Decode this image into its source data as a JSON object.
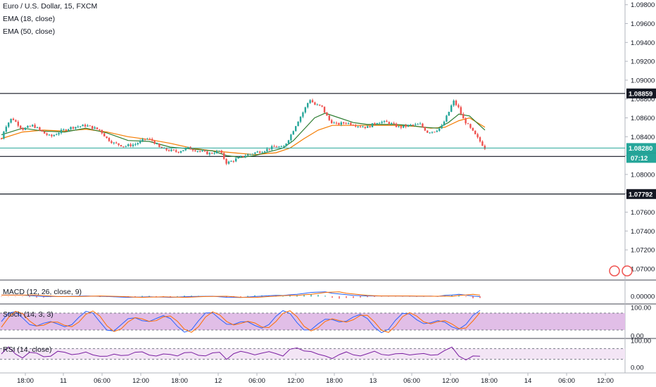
{
  "legend": {
    "symbol": "Euro / U.S. Dollar, 15, FXCM",
    "ema18": "EMA (18, close)",
    "ema50": "EMA (50, close)",
    "macd": "MACD (12, 26, close, 9)",
    "stoch": "Stoch (14, 3, 3)",
    "rsi": "RSI (14, close)"
  },
  "colors": {
    "ema18": "#2e7d32",
    "ema50": "#f57c00",
    "price_line": "#26a69a",
    "up": "#26a69a",
    "down": "#ef5350",
    "macd": "#2962ff",
    "signal": "#ff6d00",
    "stoch_band": "#e1bee7",
    "rsi_band": "#f3e5f5",
    "rsi_line": "#7b1fa2"
  },
  "chart_data": {
    "type": "candlestick",
    "symbol": "Euro / U.S. Dollar",
    "timeframe": "15",
    "source": "FXCM",
    "y_ticks": [
      "1.09800",
      "1.09600",
      "1.09400",
      "1.09200",
      "1.09000",
      "1.08800",
      "1.08600",
      "1.08400",
      "1.08200",
      "1.08000",
      "1.07800",
      "1.07600",
      "1.07400",
      "1.07200",
      "1.07000"
    ],
    "ylim": [
      1.0688,
      1.0985
    ],
    "x_ticks": [
      "18:00",
      "11",
      "06:00",
      "12:00",
      "18:00",
      "12",
      "06:00",
      "12:00",
      "18:00",
      "13",
      "06:00",
      "12:00",
      "18:00",
      "14",
      "06:00",
      "12:00"
    ],
    "horizontal_levels": [
      {
        "label": "1.08859",
        "value": 1.08859
      },
      {
        "label": "1.08191",
        "value": 1.08191
      },
      {
        "label": "1.07792",
        "value": 1.07792
      }
    ],
    "last_price": {
      "label": "1.08280",
      "value": 1.0828,
      "countdown": "07:12"
    },
    "price_path": [
      [
        0,
        1.0838
      ],
      [
        0.5,
        1.085
      ],
      [
        1.5,
        1.086
      ],
      [
        3,
        1.0848
      ],
      [
        4.5,
        1.0852
      ],
      [
        6,
        1.0844
      ],
      [
        7,
        1.084
      ],
      [
        8.5,
        1.0846
      ],
      [
        10,
        1.085
      ],
      [
        12,
        1.0852
      ],
      [
        14,
        1.0847
      ],
      [
        15,
        1.0838
      ],
      [
        16,
        1.0833
      ],
      [
        17.5,
        1.083
      ],
      [
        19,
        1.0832
      ],
      [
        20.5,
        1.0838
      ],
      [
        21.5,
        1.0836
      ],
      [
        22.5,
        1.0828
      ],
      [
        23.5,
        1.0826
      ],
      [
        25,
        1.0824
      ],
      [
        26.5,
        1.0828
      ],
      [
        28,
        1.0825
      ],
      [
        29.5,
        1.0822
      ],
      [
        31,
        1.0825
      ],
      [
        32,
        1.0812
      ],
      [
        33,
        1.0815
      ],
      [
        34.5,
        1.082
      ],
      [
        36,
        1.0823
      ],
      [
        37.5,
        1.0826
      ],
      [
        39,
        1.083
      ],
      [
        40,
        1.0828
      ],
      [
        41,
        1.084
      ],
      [
        42,
        1.0855
      ],
      [
        43,
        1.0868
      ],
      [
        43.8,
        1.088
      ],
      [
        44.5,
        1.0874
      ],
      [
        45.5,
        1.0872
      ],
      [
        46.5,
        1.0858
      ],
      [
        47.5,
        1.0853
      ],
      [
        49,
        1.0855
      ],
      [
        50.5,
        1.0852
      ],
      [
        52,
        1.085
      ],
      [
        53.5,
        1.0856
      ],
      [
        55,
        1.0855
      ],
      [
        56.5,
        1.085
      ],
      [
        58,
        1.0852
      ],
      [
        59.5,
        1.0853
      ],
      [
        60.5,
        1.0845
      ],
      [
        61.5,
        1.0846
      ],
      [
        62.5,
        1.085
      ],
      [
        63.5,
        1.0865
      ],
      [
        64.2,
        1.0878
      ],
      [
        65,
        1.087
      ],
      [
        65.5,
        1.086
      ],
      [
        66.5,
        1.085
      ],
      [
        67.5,
        1.084
      ],
      [
        68.7,
        1.0828
      ]
    ],
    "ema18": [
      [
        0,
        1.0842
      ],
      [
        3,
        1.0849
      ],
      [
        6,
        1.0846
      ],
      [
        9,
        1.0845
      ],
      [
        12,
        1.0849
      ],
      [
        15,
        1.0844
      ],
      [
        18,
        1.0836
      ],
      [
        21,
        1.0835
      ],
      [
        24,
        1.0829
      ],
      [
        27,
        1.0827
      ],
      [
        30,
        1.0825
      ],
      [
        32,
        1.082
      ],
      [
        34,
        1.0818
      ],
      [
        36,
        1.082
      ],
      [
        38,
        1.0824
      ],
      [
        40,
        1.0828
      ],
      [
        41.5,
        1.0836
      ],
      [
        43,
        1.0848
      ],
      [
        44.5,
        1.086
      ],
      [
        46,
        1.0865
      ],
      [
        48,
        1.086
      ],
      [
        50,
        1.0855
      ],
      [
        52,
        1.0853
      ],
      [
        54,
        1.0853
      ],
      [
        56,
        1.0853
      ],
      [
        58,
        1.0852
      ],
      [
        60,
        1.085
      ],
      [
        62,
        1.0849
      ],
      [
        63.5,
        1.0855
      ],
      [
        65,
        1.0864
      ],
      [
        66.5,
        1.0862
      ],
      [
        68.7,
        1.0847
      ]
    ],
    "ema50": [
      [
        0,
        1.0838
      ],
      [
        3,
        1.0845
      ],
      [
        6,
        1.0847
      ],
      [
        9,
        1.0846
      ],
      [
        12,
        1.0848
      ],
      [
        15,
        1.0845
      ],
      [
        18,
        1.084
      ],
      [
        21,
        1.0837
      ],
      [
        24,
        1.0833
      ],
      [
        27,
        1.0828
      ],
      [
        30,
        1.0825
      ],
      [
        33,
        1.0823
      ],
      [
        36,
        1.0821
      ],
      [
        39,
        1.0823
      ],
      [
        41,
        1.0828
      ],
      [
        43,
        1.0838
      ],
      [
        45,
        1.0847
      ],
      [
        47,
        1.0852
      ],
      [
        50,
        1.0852
      ],
      [
        53,
        1.0852
      ],
      [
        56,
        1.0852
      ],
      [
        59,
        1.0851
      ],
      [
        61,
        1.0849
      ],
      [
        63,
        1.085
      ],
      [
        65,
        1.0857
      ],
      [
        66.5,
        1.086
      ],
      [
        68.7,
        1.085
      ]
    ],
    "indicators": {
      "macd": {
        "y_ticks": [
          "0.00000"
        ]
      },
      "stoch": {
        "y_ticks": [
          "100.00",
          "0.00"
        ],
        "band": [
          20,
          80
        ]
      },
      "rsi": {
        "y_ticks": [
          "100.00",
          "0.00"
        ],
        "band": [
          30,
          70
        ]
      }
    }
  }
}
